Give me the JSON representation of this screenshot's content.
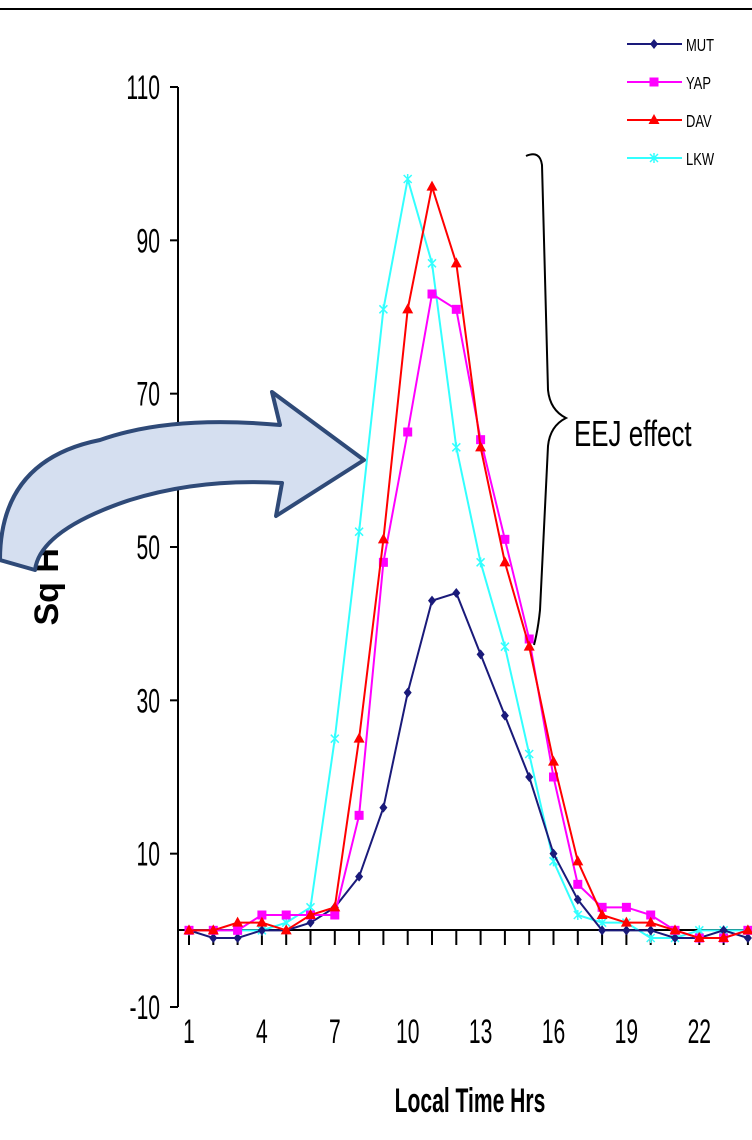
{
  "chart_data": {
    "type": "line",
    "xlabel": "Local Time Hrs",
    "ylabel": "Sq H (nT)",
    "xlim": [
      1,
      24
    ],
    "ylim": [
      -10,
      110
    ],
    "x_ticks": [
      1,
      4,
      7,
      10,
      13,
      16,
      19,
      22
    ],
    "y_ticks": [
      -10,
      10,
      30,
      50,
      70,
      90,
      110
    ],
    "legend_position": "top-right",
    "annotation": "EEJ effect",
    "x": [
      1,
      2,
      3,
      4,
      5,
      6,
      7,
      8,
      9,
      10,
      11,
      12,
      13,
      14,
      15,
      16,
      17,
      18,
      19,
      20,
      21,
      22,
      23,
      24
    ],
    "series": [
      {
        "name": "MUT",
        "color": "#1a1a7a",
        "marker": "diamond",
        "values": [
          0,
          -1,
          -1,
          0,
          0,
          1,
          3,
          7,
          16,
          31,
          43,
          44,
          36,
          28,
          20,
          10,
          4,
          0,
          0,
          0,
          -1,
          -1,
          0,
          -1
        ]
      },
      {
        "name": "YAP",
        "color": "#ff00ff",
        "marker": "square",
        "values": [
          0,
          0,
          0,
          2,
          2,
          2,
          2,
          15,
          48,
          65,
          83,
          81,
          64,
          51,
          38,
          20,
          6,
          3,
          3,
          2,
          0,
          -1,
          -1,
          0
        ]
      },
      {
        "name": "DAV",
        "color": "#ff0000",
        "marker": "triangle",
        "values": [
          0,
          0,
          1,
          1,
          0,
          2,
          3,
          25,
          51,
          81,
          97,
          87,
          63,
          48,
          37,
          22,
          9,
          2,
          1,
          1,
          0,
          -1,
          -1,
          0
        ]
      },
      {
        "name": "LKW",
        "color": "#33ffff",
        "marker": "asterisk",
        "values": [
          0,
          0,
          0,
          0,
          1,
          3,
          25,
          52,
          81,
          98,
          87,
          63,
          48,
          37,
          23,
          9,
          2,
          1,
          1,
          -1,
          -1,
          0,
          0,
          0
        ]
      }
    ]
  }
}
